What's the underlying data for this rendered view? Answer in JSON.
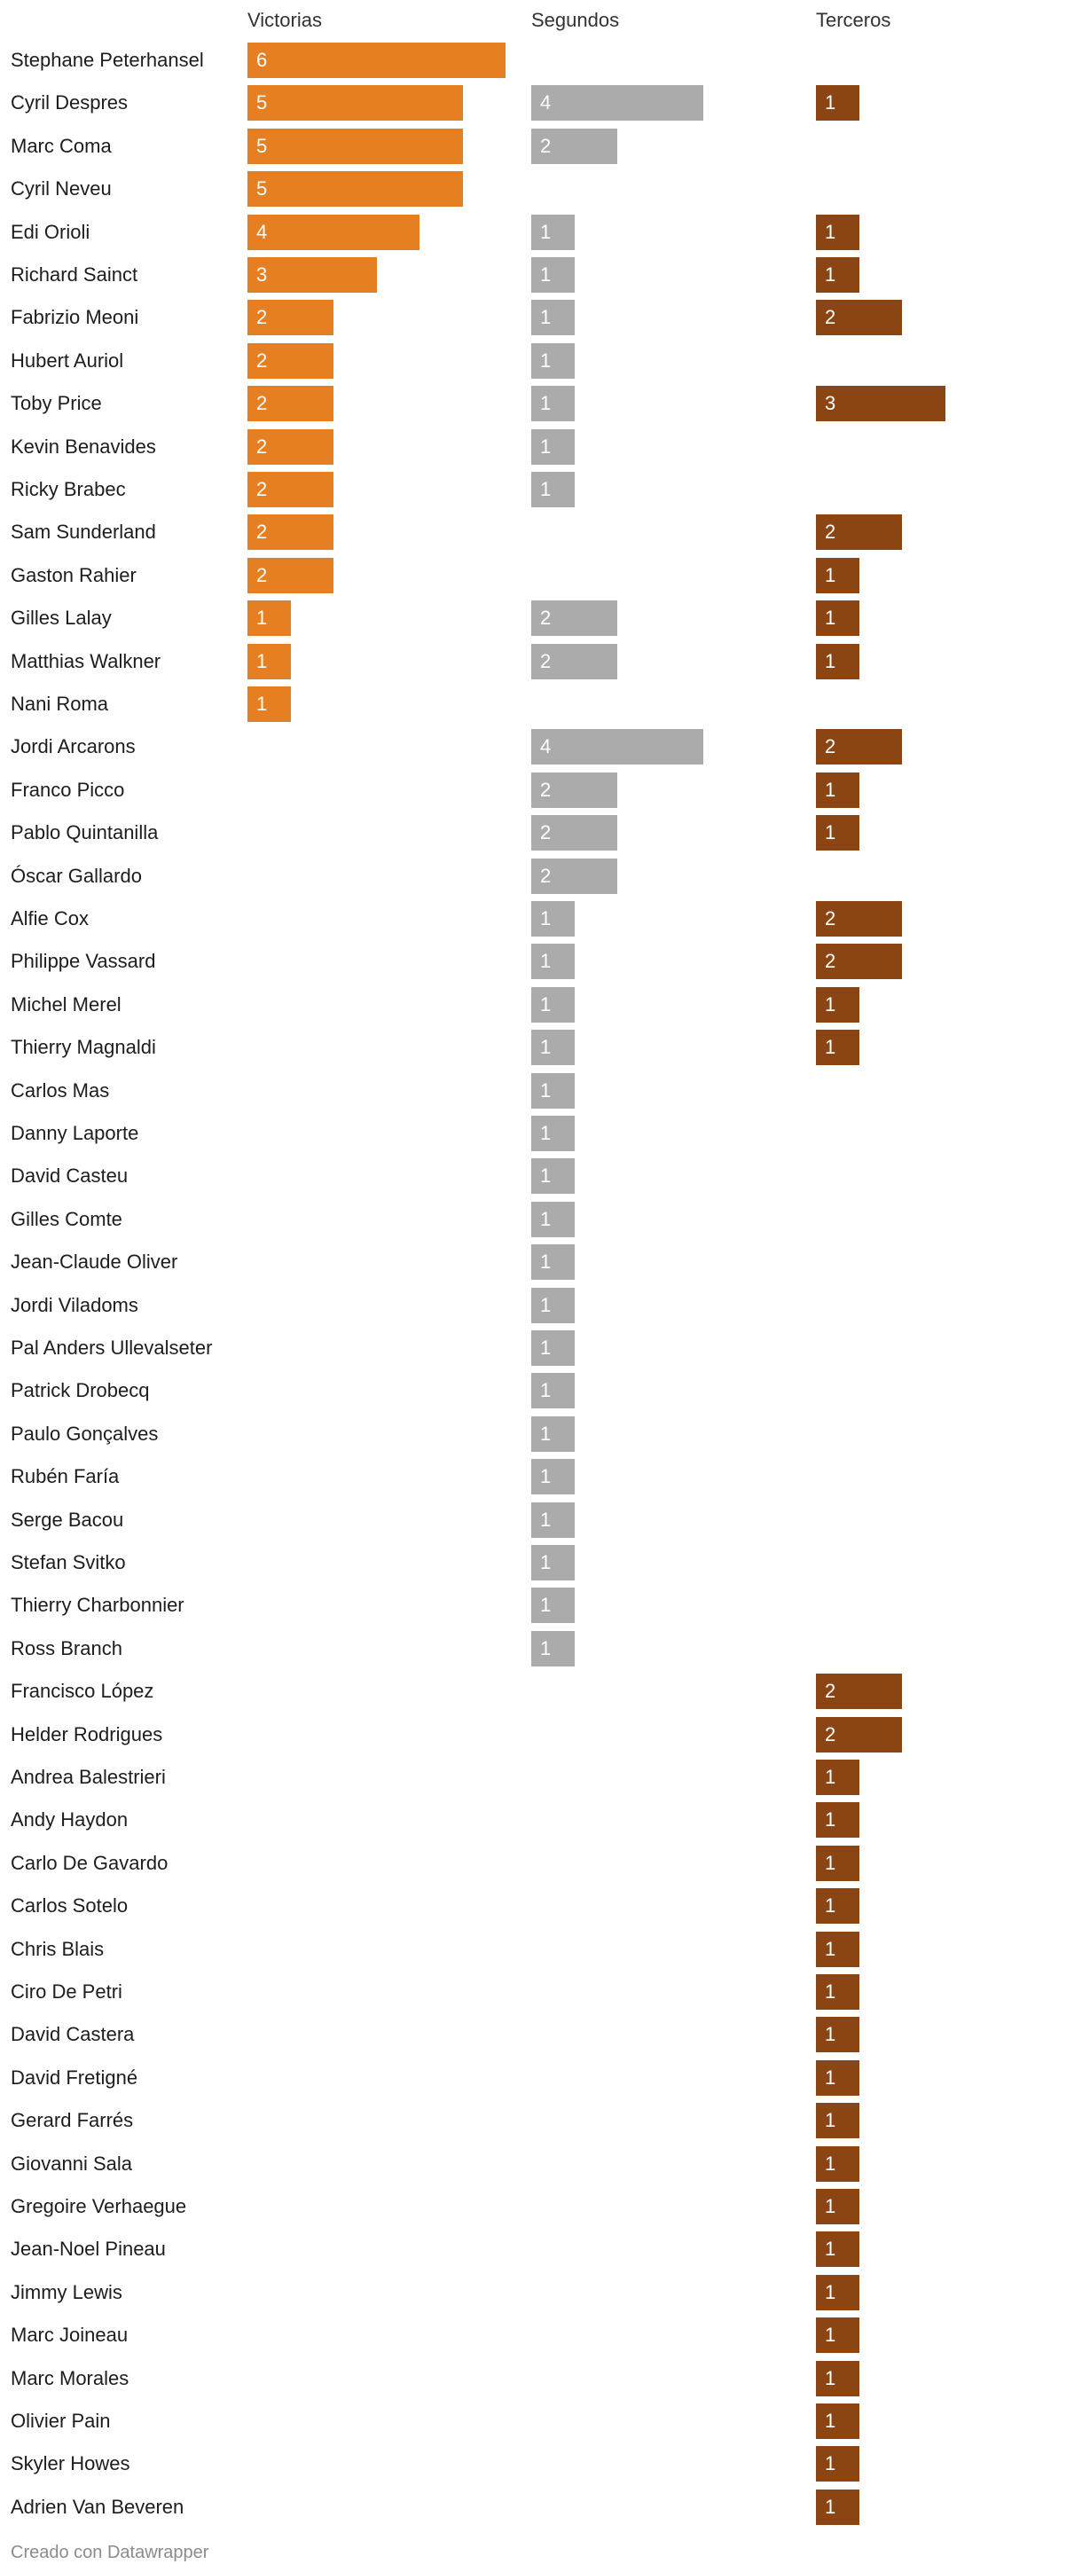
{
  "chart_data": {
    "type": "bar",
    "columns": [
      {
        "key": "wins",
        "name": "Victorias",
        "color": "#e67e22"
      },
      {
        "key": "seconds",
        "name": "Segundos",
        "color": "#ababab"
      },
      {
        "key": "thirds",
        "name": "Terceros",
        "color": "#8b4513"
      }
    ],
    "rows": [
      {
        "name": "Stephane Peterhansel",
        "wins": 6,
        "seconds": null,
        "thirds": null
      },
      {
        "name": "Cyril Despres",
        "wins": 5,
        "seconds": 4,
        "thirds": 1
      },
      {
        "name": "Marc Coma",
        "wins": 5,
        "seconds": 2,
        "thirds": null
      },
      {
        "name": "Cyril Neveu",
        "wins": 5,
        "seconds": null,
        "thirds": null
      },
      {
        "name": "Edi Orioli",
        "wins": 4,
        "seconds": 1,
        "thirds": 1
      },
      {
        "name": "Richard Sainct",
        "wins": 3,
        "seconds": 1,
        "thirds": 1
      },
      {
        "name": "Fabrizio Meoni",
        "wins": 2,
        "seconds": 1,
        "thirds": 2
      },
      {
        "name": "Hubert Auriol",
        "wins": 2,
        "seconds": 1,
        "thirds": null
      },
      {
        "name": "Toby Price",
        "wins": 2,
        "seconds": 1,
        "thirds": 3
      },
      {
        "name": "Kevin Benavides",
        "wins": 2,
        "seconds": 1,
        "thirds": null
      },
      {
        "name": "Ricky Brabec",
        "wins": 2,
        "seconds": 1,
        "thirds": null
      },
      {
        "name": "Sam Sunderland",
        "wins": 2,
        "seconds": null,
        "thirds": 2
      },
      {
        "name": "Gaston Rahier",
        "wins": 2,
        "seconds": null,
        "thirds": 1
      },
      {
        "name": "Gilles Lalay",
        "wins": 1,
        "seconds": 2,
        "thirds": 1
      },
      {
        "name": "Matthias Walkner",
        "wins": 1,
        "seconds": 2,
        "thirds": 1
      },
      {
        "name": "Nani Roma",
        "wins": 1,
        "seconds": null,
        "thirds": null
      },
      {
        "name": "Jordi Arcarons",
        "wins": null,
        "seconds": 4,
        "thirds": 2
      },
      {
        "name": "Franco Picco",
        "wins": null,
        "seconds": 2,
        "thirds": 1
      },
      {
        "name": "Pablo Quintanilla",
        "wins": null,
        "seconds": 2,
        "thirds": 1
      },
      {
        "name": "Óscar Gallardo",
        "wins": null,
        "seconds": 2,
        "thirds": null
      },
      {
        "name": "Alfie Cox",
        "wins": null,
        "seconds": 1,
        "thirds": 2
      },
      {
        "name": "Philippe Vassard",
        "wins": null,
        "seconds": 1,
        "thirds": 2
      },
      {
        "name": "Michel Merel",
        "wins": null,
        "seconds": 1,
        "thirds": 1
      },
      {
        "name": "Thierry Magnaldi",
        "wins": null,
        "seconds": 1,
        "thirds": 1
      },
      {
        "name": "Carlos Mas",
        "wins": null,
        "seconds": 1,
        "thirds": null
      },
      {
        "name": "Danny Laporte",
        "wins": null,
        "seconds": 1,
        "thirds": null
      },
      {
        "name": "David Casteu",
        "wins": null,
        "seconds": 1,
        "thirds": null
      },
      {
        "name": "Gilles Comte",
        "wins": null,
        "seconds": 1,
        "thirds": null
      },
      {
        "name": "Jean-Claude Oliver",
        "wins": null,
        "seconds": 1,
        "thirds": null
      },
      {
        "name": "Jordi Viladoms",
        "wins": null,
        "seconds": 1,
        "thirds": null
      },
      {
        "name": "Pal Anders Ullevalseter",
        "wins": null,
        "seconds": 1,
        "thirds": null
      },
      {
        "name": "Patrick Drobecq",
        "wins": null,
        "seconds": 1,
        "thirds": null
      },
      {
        "name": "Paulo Gonçalves",
        "wins": null,
        "seconds": 1,
        "thirds": null
      },
      {
        "name": "Rubén Faría",
        "wins": null,
        "seconds": 1,
        "thirds": null
      },
      {
        "name": "Serge Bacou",
        "wins": null,
        "seconds": 1,
        "thirds": null
      },
      {
        "name": "Stefan Svitko",
        "wins": null,
        "seconds": 1,
        "thirds": null
      },
      {
        "name": "Thierry Charbonnier",
        "wins": null,
        "seconds": 1,
        "thirds": null
      },
      {
        "name": "Ross Branch",
        "wins": null,
        "seconds": 1,
        "thirds": null
      },
      {
        "name": "Francisco López",
        "wins": null,
        "seconds": null,
        "thirds": 2
      },
      {
        "name": "Helder Rodrigues",
        "wins": null,
        "seconds": null,
        "thirds": 2
      },
      {
        "name": "Andrea Balestrieri",
        "wins": null,
        "seconds": null,
        "thirds": 1
      },
      {
        "name": "Andy Haydon",
        "wins": null,
        "seconds": null,
        "thirds": 1
      },
      {
        "name": "Carlo De Gavardo",
        "wins": null,
        "seconds": null,
        "thirds": 1
      },
      {
        "name": "Carlos Sotelo",
        "wins": null,
        "seconds": null,
        "thirds": 1
      },
      {
        "name": "Chris Blais",
        "wins": null,
        "seconds": null,
        "thirds": 1
      },
      {
        "name": "Ciro De Petri",
        "wins": null,
        "seconds": null,
        "thirds": 1
      },
      {
        "name": "David Castera",
        "wins": null,
        "seconds": null,
        "thirds": 1
      },
      {
        "name": "David Fretigné",
        "wins": null,
        "seconds": null,
        "thirds": 1
      },
      {
        "name": "Gerard Farrés",
        "wins": null,
        "seconds": null,
        "thirds": 1
      },
      {
        "name": "Giovanni Sala",
        "wins": null,
        "seconds": null,
        "thirds": 1
      },
      {
        "name": "Gregoire Verhaegue",
        "wins": null,
        "seconds": null,
        "thirds": 1
      },
      {
        "name": "Jean-Noel Pineau",
        "wins": null,
        "seconds": null,
        "thirds": 1
      },
      {
        "name": "Jimmy Lewis",
        "wins": null,
        "seconds": null,
        "thirds": 1
      },
      {
        "name": "Marc Joineau",
        "wins": null,
        "seconds": null,
        "thirds": 1
      },
      {
        "name": "Marc Morales",
        "wins": null,
        "seconds": null,
        "thirds": 1
      },
      {
        "name": "Olivier Pain",
        "wins": null,
        "seconds": null,
        "thirds": 1
      },
      {
        "name": "Skyler Howes",
        "wins": null,
        "seconds": null,
        "thirds": 1
      },
      {
        "name": "Adrien Van Beveren",
        "wins": null,
        "seconds": null,
        "thirds": 1
      }
    ],
    "footer": "Creado con Datawrapper"
  }
}
